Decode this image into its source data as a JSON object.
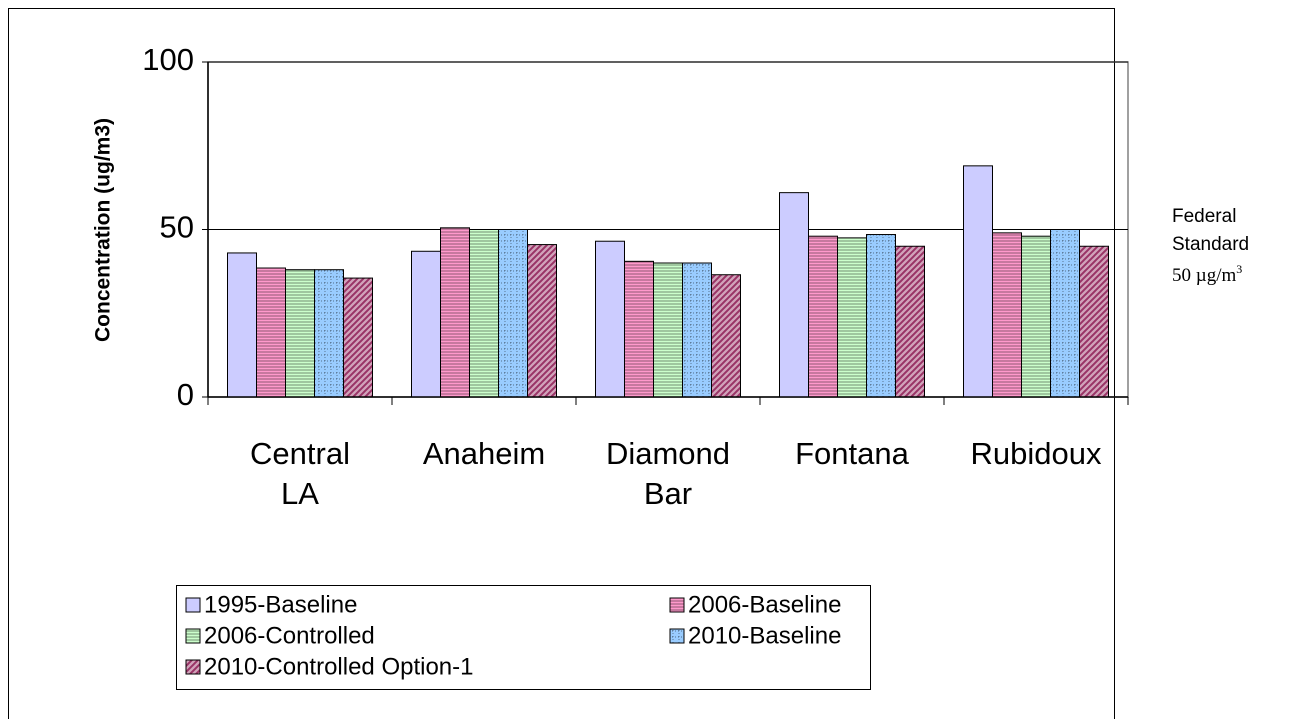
{
  "chart_data": {
    "type": "bar",
    "y_label": "Concentration (ug/m3)",
    "categories": [
      [
        "Central",
        "LA"
      ],
      [
        "Anaheim"
      ],
      [
        "Diamond",
        "Bar"
      ],
      [
        "Fontana"
      ],
      [
        "Rubidoux"
      ]
    ],
    "series": [
      {
        "name": "1995-Baseline",
        "color": "#ccccff",
        "hatch": "none",
        "values": [
          43,
          43.5,
          46.5,
          61,
          69
        ]
      },
      {
        "name": "2006-Baseline",
        "color": "#ff99cc",
        "hatch": "horizontal",
        "values": [
          38.5,
          50.5,
          40.5,
          48,
          49
        ]
      },
      {
        "name": "2006-Controlled",
        "color": "#ccffcc",
        "hatch": "horizontal",
        "values": [
          38,
          50,
          40,
          47.5,
          48
        ]
      },
      {
        "name": "2010-Baseline",
        "color": "#99ccff",
        "hatch": "grid",
        "values": [
          38,
          50,
          40,
          48.5,
          50
        ]
      },
      {
        "name": "2010-Controlled Option-1",
        "color": "#993366",
        "hatch": "diagonal",
        "values": [
          35.5,
          45.5,
          36.5,
          45,
          45
        ]
      }
    ],
    "ylim": [
      0,
      100
    ],
    "yticks": [
      0,
      50,
      100
    ],
    "grid": true,
    "legend": "bottom",
    "annotation": {
      "lines": [
        "Federal",
        "Standard"
      ],
      "value_text": "50 µg/m",
      "superscript": "3"
    }
  }
}
